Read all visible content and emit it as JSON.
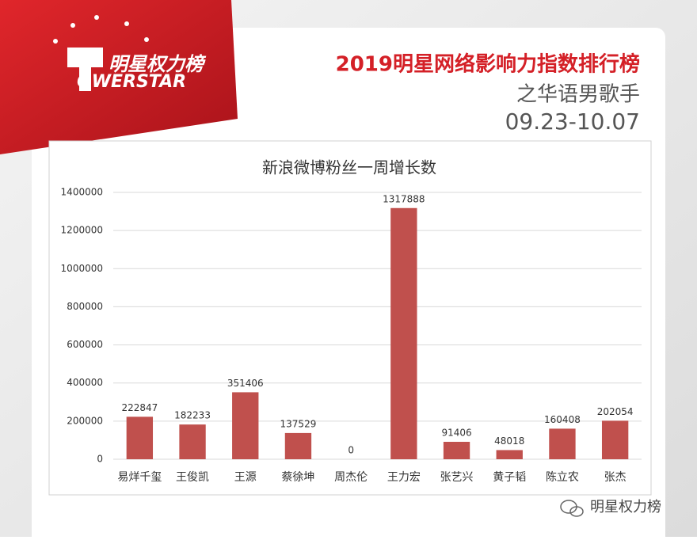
{
  "logo": {
    "name": "明星权力榜",
    "wordmark": "OWERSTAR"
  },
  "header": {
    "title": "2019明星网络影响力指数排行榜",
    "subtitle": "之华语男歌手",
    "period": "09.23-10.07"
  },
  "chart_data": {
    "type": "bar",
    "title": "新浪微博粉丝一周增长数",
    "categories": [
      "易烊千玺",
      "王俊凯",
      "王源",
      "蔡徐坤",
      "周杰伦",
      "王力宏",
      "张艺兴",
      "黄子韬",
      "陈立农",
      "张杰"
    ],
    "values": [
      222847,
      182233,
      351406,
      137529,
      0,
      1317888,
      91406,
      48018,
      160408,
      202054
    ],
    "color": "#c0504d",
    "ylim": [
      0,
      1400000
    ],
    "yticks": [
      0,
      200000,
      400000,
      600000,
      800000,
      1000000,
      1200000,
      1400000
    ],
    "grid": true
  },
  "footer": {
    "watermark": "明星权力榜"
  }
}
